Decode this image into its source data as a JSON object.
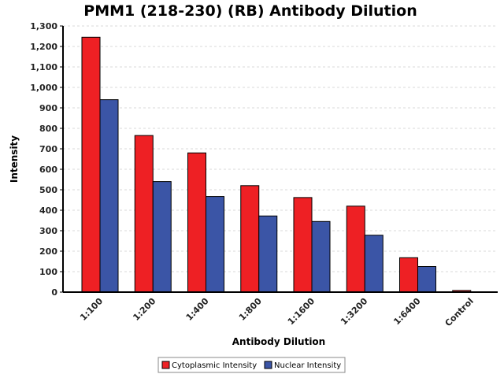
{
  "chart_data": {
    "type": "bar",
    "title": "PMM1 (218-230) (RB) Antibody Dilution",
    "xlabel": "Antibody Dilution",
    "ylabel": "Intensity",
    "categories": [
      "1:100",
      "1:200",
      "1:400",
      "1:800",
      "1:1600",
      "1:3200",
      "1:6400",
      "Control"
    ],
    "series": [
      {
        "name": "Cytoplasmic Intensity",
        "color": "#ee2024",
        "values": [
          1245,
          765,
          680,
          520,
          462,
          420,
          168,
          8
        ]
      },
      {
        "name": "Nuclear Intensity",
        "color": "#3b55a6",
        "values": [
          940,
          540,
          467,
          372,
          345,
          278,
          125,
          0
        ]
      }
    ],
    "ylim": [
      0,
      1300
    ],
    "yticks": [
      "0",
      "100",
      "200",
      "300",
      "400",
      "500",
      "600",
      "700",
      "800",
      "900",
      "1,000",
      "1,100",
      "1,200",
      "1,300"
    ],
    "grid": true,
    "legend_position": "bottom"
  }
}
